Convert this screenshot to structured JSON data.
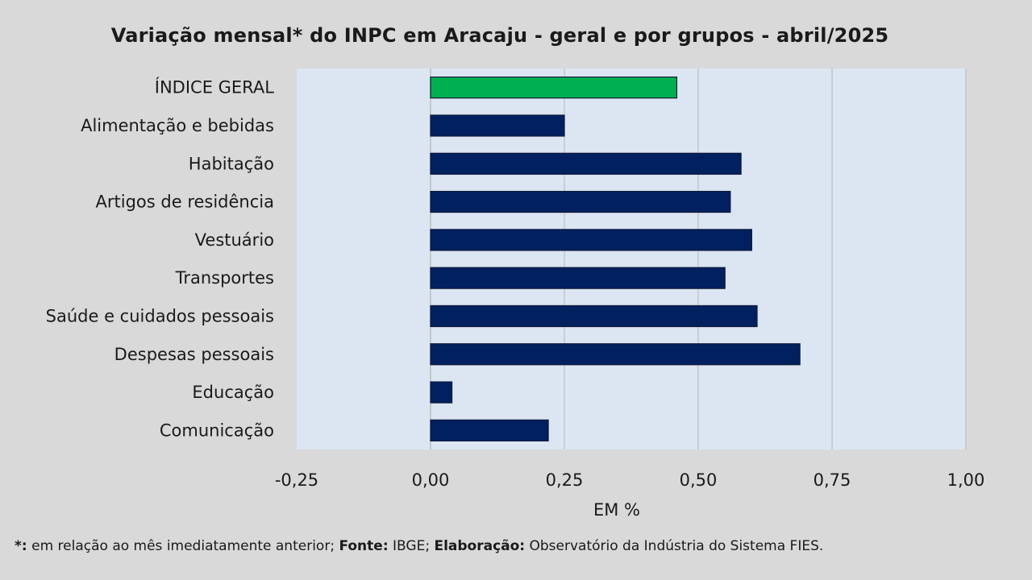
{
  "chart_data": {
    "type": "bar",
    "orientation": "horizontal",
    "title": "Variação  mensal*  do INPC em Aracaju  - geral e por grupos  - abril/2025",
    "xlabel": "EM %",
    "ylabel": "",
    "xlim": [
      -0.25,
      1.0
    ],
    "x_ticks": [
      "-0,25",
      "0,00",
      "0,25",
      "0,50",
      "0,75",
      "1,00"
    ],
    "x_tick_values": [
      -0.25,
      0.0,
      0.25,
      0.5,
      0.75,
      1.0
    ],
    "grid": "vertical",
    "categories": [
      "ÍNDICE GERAL",
      "Alimentação e bebidas",
      "Habitação",
      "Artigos de residência",
      "Vestuário",
      "Transportes",
      "Saúde e cuidados pessoais",
      "Despesas pessoais",
      "Educação",
      "Comunicação"
    ],
    "values": [
      0.46,
      0.25,
      0.58,
      0.56,
      0.6,
      0.55,
      0.61,
      0.69,
      0.04,
      0.22
    ],
    "colors": {
      "highlight": "#00b050",
      "bar": "#002060",
      "plot_background": "#dce6f2",
      "page_background": "#d9d9d9",
      "grid": "#bfbfbf"
    }
  },
  "footnote": {
    "asterisk": "*:",
    "text1": " em relação ao mês imediatamente  anterior; ",
    "fonte_label": "Fonte:",
    "fonte_text": " IBGE; ",
    "elab_label": "Elaboração:",
    "elab_text": " Observatório da Indústria do Sistema FIES."
  }
}
